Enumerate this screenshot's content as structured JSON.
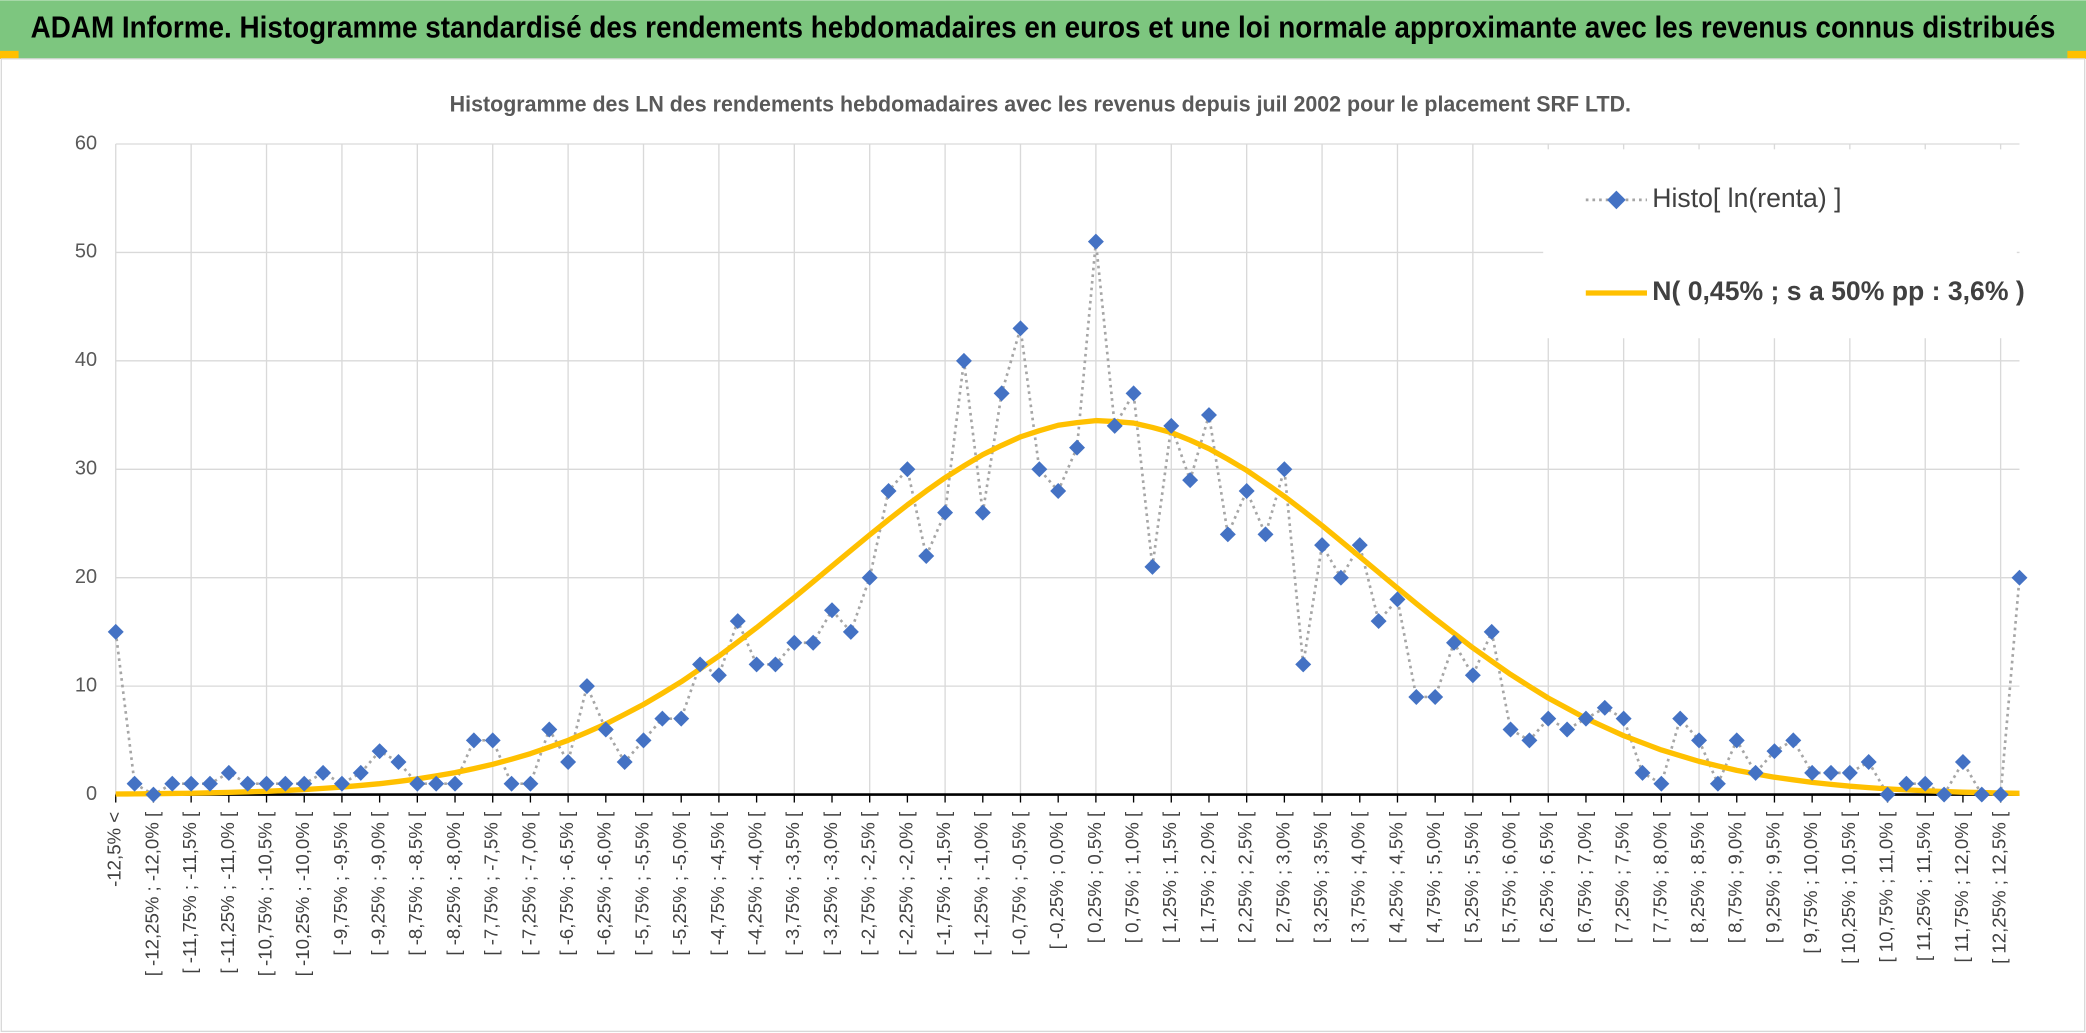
{
  "header": {
    "title": "ADAM Informe. Histogramme standardisé des rendements hebdomadaires en euros et une loi normale approximante avec les revenus connus distribués"
  },
  "chart_data": {
    "type": "line",
    "title": "Histogramme des LN des rendements hebdomadaires avec les revenus depuis juil 2002 pour le placement SRF LTD.",
    "categories": [
      "-12,5% <",
      null,
      "[ -12,25% ; -12,0% [",
      null,
      "[ -11,75% ; -11,5% [",
      null,
      "[ -11,25% ; -11,0% [",
      null,
      "[ -10,75% ; -10,5% [",
      null,
      "[ -10,25% ; -10,0% [",
      null,
      "[ -9,75% ; -9,5% [",
      null,
      "[ -9,25% ; -9,0% [",
      null,
      "[ -8,75% ; -8,5% [",
      null,
      "[ -8,25% ; -8,0% [",
      null,
      "[ -7,75% ; -7,5% [",
      null,
      "[ -7,25% ; -7,0% [",
      null,
      "[ -6,75% ; -6,5% [",
      null,
      "[ -6,25% ; -6,0% [",
      null,
      "[ -5,75% ; -5,5% [",
      null,
      "[ -5,25% ; -5,0% [",
      null,
      "[ -4,75% ; -4,5% [",
      null,
      "[ -4,25% ; -4,0% [",
      null,
      "[ -3,75% ; -3,5% [",
      null,
      "[ -3,25% ; -3,0% [",
      null,
      "[ -2,75% ; -2,5% [",
      null,
      "[ -2,25% ; -2,0% [",
      null,
      "[ -1,75% ; -1,5% [",
      null,
      "[ -1,25% ; -1,0% [",
      null,
      "[ -0,75% ; -0,5% [",
      null,
      "[ -0,25% ; 0,0% [",
      null,
      "[ 0,25% ; 0,5% [",
      null,
      "[ 0,75% ; 1,0% [",
      null,
      "[ 1,25% ; 1,5% [",
      null,
      "[ 1,75% ; 2,0% [",
      null,
      "[ 2,25% ; 2,5% [",
      null,
      "[ 2,75% ; 3,0% [",
      null,
      "[ 3,25% ; 3,5% [",
      null,
      "[ 3,75% ; 4,0% [",
      null,
      "[ 4,25% ; 4,5% [",
      null,
      "[ 4,75% ; 5,0% [",
      null,
      "[ 5,25% ; 5,5% [",
      null,
      "[ 5,75% ; 6,0% [",
      null,
      "[ 6,25% ; 6,5% [",
      null,
      "[ 6,75% ; 7,0% [",
      null,
      "[ 7,25% ; 7,5% [",
      null,
      "[ 7,75% ; 8,0% [",
      null,
      "[ 8,25% ; 8,5% [",
      null,
      "[ 8,75% ; 9,0% [",
      null,
      "[ 9,25% ; 9,5% [",
      null,
      "[ 9,75% ; 10,0% [",
      null,
      "[ 10,25% ; 10,5% [",
      null,
      "[ 10,75% ; 11,0% [",
      null,
      "[ 11,25% ; 11,5% [",
      null,
      "[ 11,75% ; 12,0% [",
      null,
      "[ 12,25% ; 12,5% [",
      null
    ],
    "series": [
      {
        "name": "Histo[ ln(renta) ]",
        "color": "#a6a6a6",
        "marker_color": "#4472c4",
        "values": [
          15,
          1,
          0,
          1,
          1,
          1,
          2,
          1,
          1,
          1,
          1,
          2,
          1,
          2,
          4,
          3,
          1,
          1,
          1,
          5,
          5,
          1,
          1,
          6,
          3,
          10,
          6,
          3,
          5,
          7,
          7,
          12,
          11,
          16,
          12,
          12,
          14,
          14,
          17,
          15,
          20,
          28,
          30,
          22,
          26,
          40,
          26,
          37,
          43,
          30,
          28,
          32,
          51,
          34,
          37,
          21,
          34,
          29,
          35,
          24,
          28,
          24,
          30,
          12,
          23,
          20,
          23,
          16,
          18,
          9,
          9,
          14,
          11,
          15,
          6,
          5,
          7,
          6,
          7,
          8,
          7,
          2,
          1,
          7,
          5,
          1,
          5,
          2,
          4,
          5,
          2,
          2,
          2,
          3,
          0,
          1,
          1,
          0,
          3,
          0,
          0,
          20
        ]
      },
      {
        "name": "N( 0,45% ; s a 50% pp : 3,6% )",
        "color": "#ffc000",
        "values": [
          0.05,
          0.06,
          0.08,
          0.1,
          0.12,
          0.16,
          0.2,
          0.25,
          0.3,
          0.38,
          0.46,
          0.57,
          0.69,
          0.84,
          1.0,
          1.21,
          1.44,
          1.72,
          2.02,
          2.39,
          2.79,
          3.26,
          3.77,
          4.37,
          5.0,
          5.74,
          6.51,
          7.4,
          8.31,
          9.34,
          10.4,
          11.58,
          12.77,
          14.07,
          15.39,
          16.78,
          18.18,
          19.62,
          21.07,
          22.51,
          23.95,
          25.35,
          26.71,
          28.0,
          29.22,
          30.31,
          31.35,
          32.2,
          32.99,
          33.56,
          34.06,
          34.3,
          34.49,
          34.4,
          34.26,
          33.86,
          33.39,
          32.68,
          31.9,
          30.93,
          29.9,
          28.72,
          27.5,
          26.17,
          24.81,
          23.38,
          21.94,
          20.49,
          19.04,
          17.62,
          16.21,
          14.87,
          13.53,
          12.3,
          11.08,
          9.98,
          8.9,
          7.96,
          7.02,
          6.22,
          5.43,
          4.77,
          4.11,
          3.58,
          3.06,
          2.64,
          2.23,
          1.91,
          1.6,
          1.36,
          1.12,
          0.94,
          0.77,
          0.64,
          0.52,
          0.43,
          0.35,
          0.28,
          0.22,
          0.18,
          0.14,
          0.11
        ]
      }
    ],
    "ylim": [
      0,
      60
    ],
    "yticks": [
      0,
      10,
      20,
      30,
      40,
      50,
      60
    ],
    "grid": true,
    "legend": "top-right"
  }
}
